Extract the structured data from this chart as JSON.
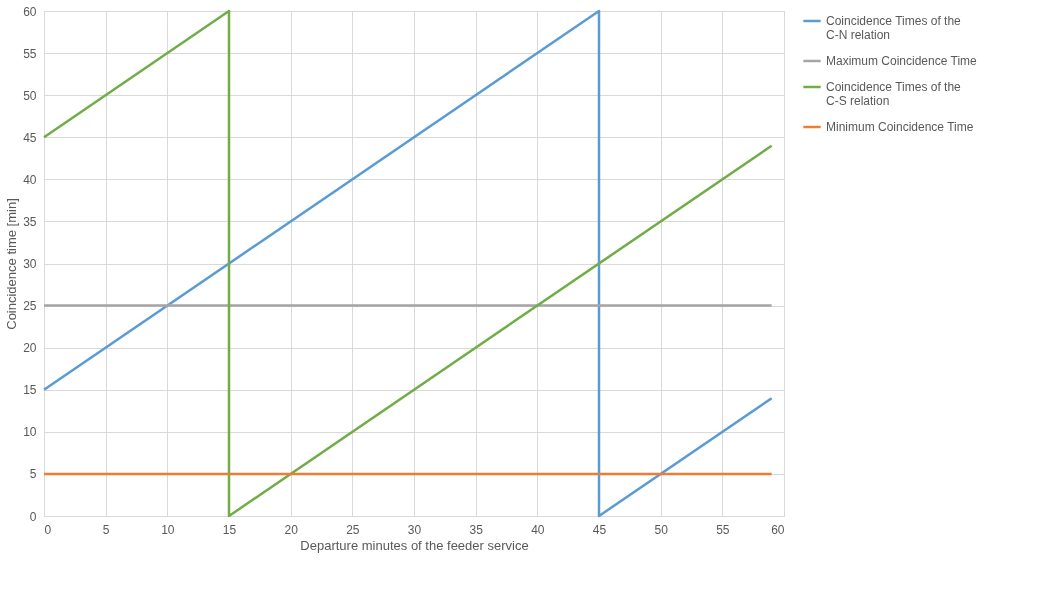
{
  "chart_data": {
    "type": "line",
    "xlabel": "Departure minutes of the feeder service",
    "ylabel": "Coincidence time [min]",
    "xlim": [
      0,
      60
    ],
    "xticks": [
      0,
      5,
      10,
      15,
      20,
      25,
      30,
      35,
      40,
      45,
      50,
      55,
      60
    ],
    "ylim": [
      0,
      60
    ],
    "yticks": [
      0,
      5,
      10,
      15,
      20,
      25,
      30,
      35,
      40,
      45,
      50,
      55,
      60
    ],
    "grid": true,
    "legend": "right",
    "marker": "none",
    "line_style": "solid",
    "series": [
      {
        "name": "Coincidence Times of the C-N relation",
        "color": "#5b9bd5",
        "x": [
          0,
          45,
          45,
          59
        ],
        "values": [
          15,
          60,
          0,
          14
        ]
      },
      {
        "name": "Maximum Coincidence Time",
        "color": "#a5a5a5",
        "x": [
          0,
          59
        ],
        "values": [
          25,
          25
        ]
      },
      {
        "name": "Coincidence Times of the C-S relation",
        "color": "#70ad47",
        "x": [
          0,
          15,
          15,
          59
        ],
        "values": [
          45,
          60,
          0,
          44
        ]
      },
      {
        "name": "Minimum Coincidence Time",
        "color": "#ed7d31",
        "x": [
          0,
          59
        ],
        "values": [
          5,
          5
        ]
      }
    ]
  }
}
